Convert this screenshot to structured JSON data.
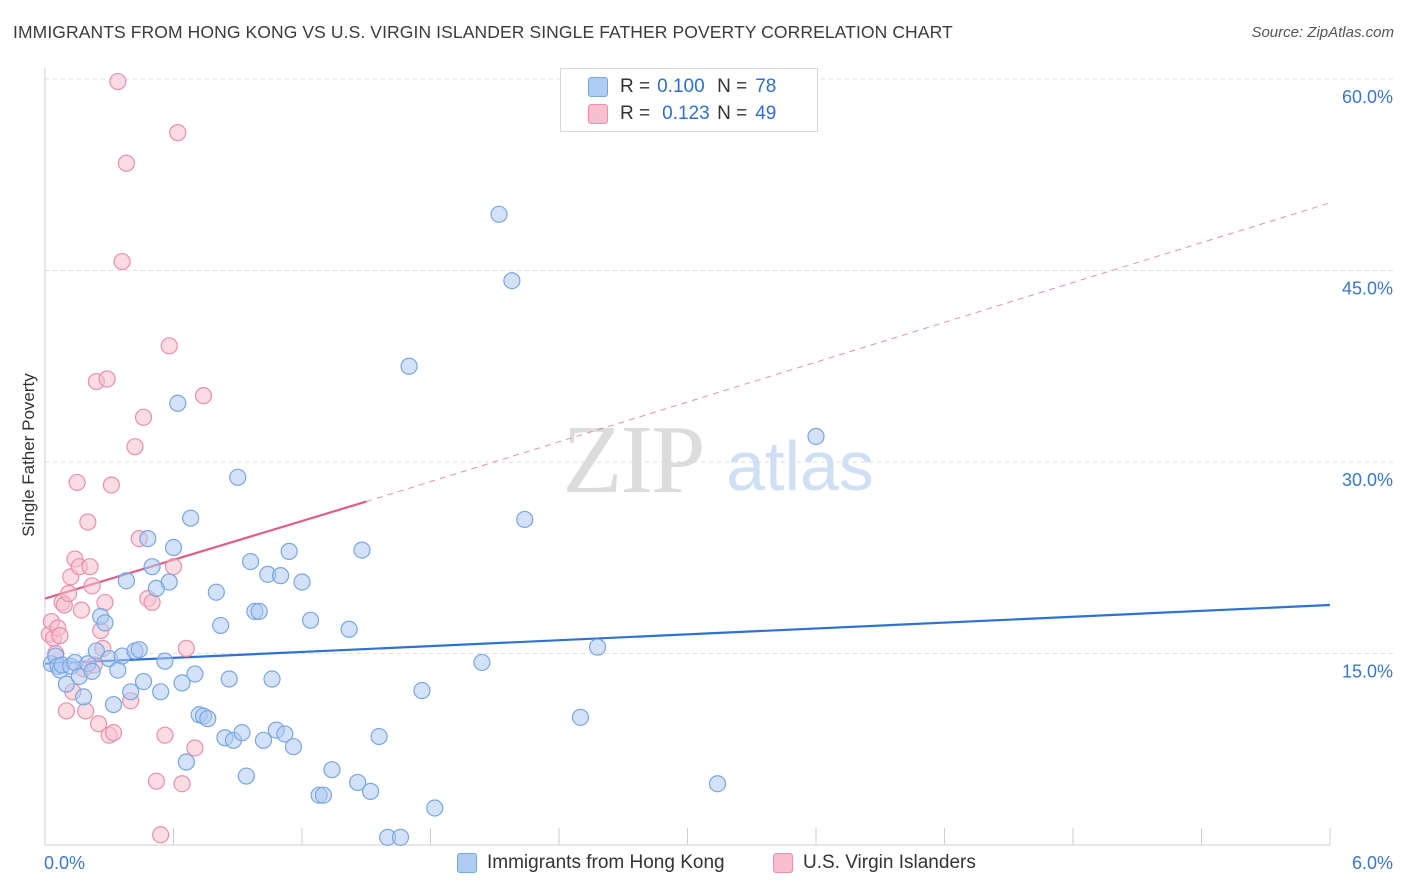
{
  "title": "IMMIGRANTS FROM HONG KONG VS U.S. VIRGIN ISLANDER SINGLE FATHER POVERTY CORRELATION CHART",
  "source": "Source: ZipAtlas.com",
  "watermark": {
    "zip": "ZIP",
    "atlas": "atlas"
  },
  "legend": {
    "r_label": "R =",
    "n_label": "N =",
    "rows": [
      {
        "r": "0.100",
        "n": "78",
        "color": "#aecbf2",
        "border": "#7aa6e0"
      },
      {
        "r": "0.123",
        "n": "49",
        "color": "#f7bfd0",
        "border": "#e890aa"
      }
    ]
  },
  "bottom_legend": [
    {
      "label": "Immigrants from Hong Kong",
      "color": "#aecbf2",
      "border": "#7aa6e0"
    },
    {
      "label": "U.S. Virgin Islanders",
      "color": "#f7bfd0",
      "border": "#e890aa"
    }
  ],
  "chart_data": {
    "type": "scatter",
    "title": "IMMIGRANTS FROM HONG KONG VS U.S. VIRGIN ISLANDER SINGLE FATHER POVERTY CORRELATION CHART",
    "xlabel": "",
    "ylabel": "Single Father Poverty",
    "xlim": [
      0,
      6
    ],
    "ylim": [
      0,
      60
    ],
    "x_tick_labels": [
      "0.0%",
      "6.0%"
    ],
    "y_ticks": [
      15,
      30,
      45,
      60
    ],
    "y_tick_labels": [
      "15.0%",
      "30.0%",
      "45.0%",
      "60.0%"
    ],
    "grid": true,
    "series": [
      {
        "name": "Immigrants from Hong Kong",
        "color": "#7aa6e0",
        "fill": "#aecbf2",
        "trend": {
          "x": [
            0,
            6
          ],
          "y": [
            14.2,
            18.8
          ],
          "color": "#2f72d4",
          "dashed_extension": false
        },
        "points": [
          [
            0.03,
            14.2
          ],
          [
            0.05,
            14.8
          ],
          [
            0.06,
            14.0
          ],
          [
            0.07,
            13.7
          ],
          [
            0.08,
            14.1
          ],
          [
            0.1,
            12.6
          ],
          [
            0.12,
            14.0
          ],
          [
            0.14,
            14.3
          ],
          [
            0.16,
            13.2
          ],
          [
            0.18,
            11.6
          ],
          [
            0.2,
            14.2
          ],
          [
            0.22,
            13.6
          ],
          [
            0.24,
            15.2
          ],
          [
            0.26,
            17.9
          ],
          [
            0.28,
            17.4
          ],
          [
            0.3,
            14.6
          ],
          [
            0.32,
            11.0
          ],
          [
            0.34,
            13.7
          ],
          [
            0.36,
            14.8
          ],
          [
            0.38,
            20.7
          ],
          [
            0.4,
            12.0
          ],
          [
            0.42,
            15.2
          ],
          [
            0.44,
            15.3
          ],
          [
            0.46,
            12.8
          ],
          [
            0.48,
            24.0
          ],
          [
            0.5,
            21.8
          ],
          [
            0.52,
            20.1
          ],
          [
            0.54,
            12.0
          ],
          [
            0.56,
            14.4
          ],
          [
            0.58,
            20.6
          ],
          [
            0.6,
            23.3
          ],
          [
            0.62,
            34.6
          ],
          [
            0.64,
            12.7
          ],
          [
            0.66,
            6.5
          ],
          [
            0.68,
            25.6
          ],
          [
            0.7,
            13.4
          ],
          [
            0.72,
            10.2
          ],
          [
            0.74,
            10.1
          ],
          [
            0.76,
            9.9
          ],
          [
            0.8,
            19.8
          ],
          [
            0.82,
            17.2
          ],
          [
            0.84,
            8.4
          ],
          [
            0.86,
            13.0
          ],
          [
            0.88,
            8.2
          ],
          [
            0.9,
            28.8
          ],
          [
            0.92,
            8.8
          ],
          [
            0.94,
            5.4
          ],
          [
            0.96,
            22.2
          ],
          [
            0.98,
            18.3
          ],
          [
            1.0,
            18.3
          ],
          [
            1.02,
            8.2
          ],
          [
            1.04,
            21.2
          ],
          [
            1.06,
            13.0
          ],
          [
            1.08,
            9.0
          ],
          [
            1.1,
            21.1
          ],
          [
            1.12,
            8.7
          ],
          [
            1.14,
            23.0
          ],
          [
            1.16,
            7.7
          ],
          [
            1.2,
            20.6
          ],
          [
            1.24,
            17.6
          ],
          [
            1.28,
            3.9
          ],
          [
            1.3,
            3.9
          ],
          [
            1.34,
            5.9
          ],
          [
            1.42,
            16.9
          ],
          [
            1.46,
            4.9
          ],
          [
            1.48,
            23.1
          ],
          [
            1.52,
            4.2
          ],
          [
            1.56,
            8.5
          ],
          [
            1.6,
            0.6
          ],
          [
            1.66,
            0.6
          ],
          [
            1.7,
            37.5
          ],
          [
            1.76,
            12.1
          ],
          [
            1.82,
            2.9
          ],
          [
            2.04,
            14.3
          ],
          [
            2.12,
            49.4
          ],
          [
            2.18,
            44.2
          ],
          [
            2.24,
            25.5
          ],
          [
            2.5,
            10.0
          ],
          [
            2.58,
            15.5
          ],
          [
            3.14,
            4.8
          ],
          [
            3.6,
            32.0
          ]
        ]
      },
      {
        "name": "U.S. Virgin Islanders",
        "color": "#e890aa",
        "fill": "#f7bfd0",
        "trend": {
          "x": [
            0,
            1.5
          ],
          "y": [
            19.3,
            26.9
          ],
          "color": "#e05d8a",
          "dashed_extension": true,
          "extension_x": [
            1.5,
            6
          ],
          "extension_y": [
            26.9,
            50.3
          ]
        },
        "points": [
          [
            0.02,
            16.5
          ],
          [
            0.03,
            17.5
          ],
          [
            0.04,
            16.2
          ],
          [
            0.05,
            15.0
          ],
          [
            0.06,
            17.0
          ],
          [
            0.07,
            16.4
          ],
          [
            0.08,
            19.0
          ],
          [
            0.09,
            18.8
          ],
          [
            0.1,
            10.5
          ],
          [
            0.11,
            19.7
          ],
          [
            0.12,
            21.0
          ],
          [
            0.13,
            12.0
          ],
          [
            0.14,
            22.4
          ],
          [
            0.15,
            28.4
          ],
          [
            0.16,
            21.8
          ],
          [
            0.17,
            18.4
          ],
          [
            0.18,
            13.8
          ],
          [
            0.19,
            10.5
          ],
          [
            0.2,
            25.3
          ],
          [
            0.21,
            21.8
          ],
          [
            0.22,
            20.3
          ],
          [
            0.23,
            14.1
          ],
          [
            0.24,
            36.3
          ],
          [
            0.25,
            9.5
          ],
          [
            0.26,
            16.8
          ],
          [
            0.27,
            15.4
          ],
          [
            0.28,
            19.0
          ],
          [
            0.29,
            36.5
          ],
          [
            0.3,
            8.6
          ],
          [
            0.31,
            28.2
          ],
          [
            0.32,
            8.8
          ],
          [
            0.34,
            59.8
          ],
          [
            0.36,
            45.7
          ],
          [
            0.38,
            53.4
          ],
          [
            0.4,
            11.3
          ],
          [
            0.42,
            31.2
          ],
          [
            0.44,
            24.0
          ],
          [
            0.46,
            33.5
          ],
          [
            0.48,
            19.3
          ],
          [
            0.5,
            19.0
          ],
          [
            0.52,
            5.0
          ],
          [
            0.54,
            0.8
          ],
          [
            0.56,
            8.6
          ],
          [
            0.58,
            39.1
          ],
          [
            0.6,
            21.8
          ],
          [
            0.62,
            55.8
          ],
          [
            0.64,
            4.8
          ],
          [
            0.66,
            15.4
          ],
          [
            0.7,
            7.6
          ],
          [
            0.74,
            35.2
          ]
        ]
      }
    ]
  }
}
